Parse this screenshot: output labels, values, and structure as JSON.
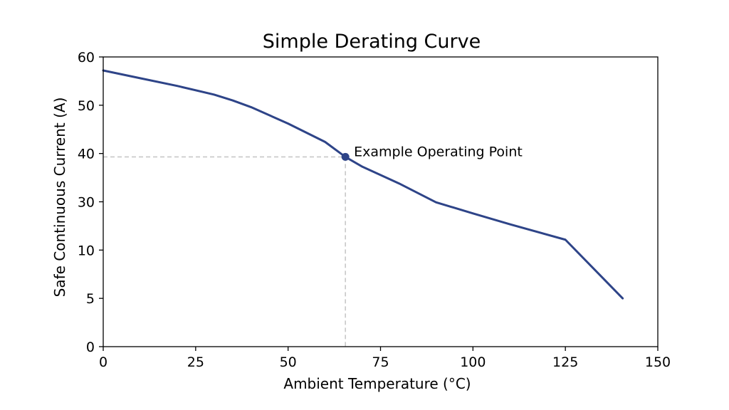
{
  "chart_data": {
    "type": "line",
    "title": "Simple Derating Curve",
    "xlabel": "Ambient Temperature (°C)",
    "ylabel": "Safe Continuous Current (A)",
    "xlim": [
      0,
      150
    ],
    "x_ticks": [
      "0",
      "25",
      "50",
      "75",
      "100",
      "125",
      "150"
    ],
    "y_ticks": [
      "0",
      "5",
      "10",
      "30",
      "40",
      "50",
      "60"
    ],
    "grid": false,
    "series": [
      {
        "color": "#2e4488",
        "x": [
          0,
          10,
          20,
          30,
          35,
          40,
          50,
          60,
          65.5,
          70,
          80,
          90,
          100,
          110,
          125,
          140.5
        ],
        "y": [
          57.2,
          55.6,
          54.0,
          52.2,
          51.0,
          49.6,
          46.2,
          42.4,
          39.3,
          37.3,
          33.8,
          29.8,
          25.2,
          20.7,
          14.3,
          5.0
        ]
      }
    ],
    "annotations": [
      {
        "label": "Example Operating Point",
        "x": 65.5,
        "y": 39.3,
        "color": "#2e4488",
        "reference_lines": true,
        "reference_line_color": "#c8c8c8"
      }
    ]
  }
}
